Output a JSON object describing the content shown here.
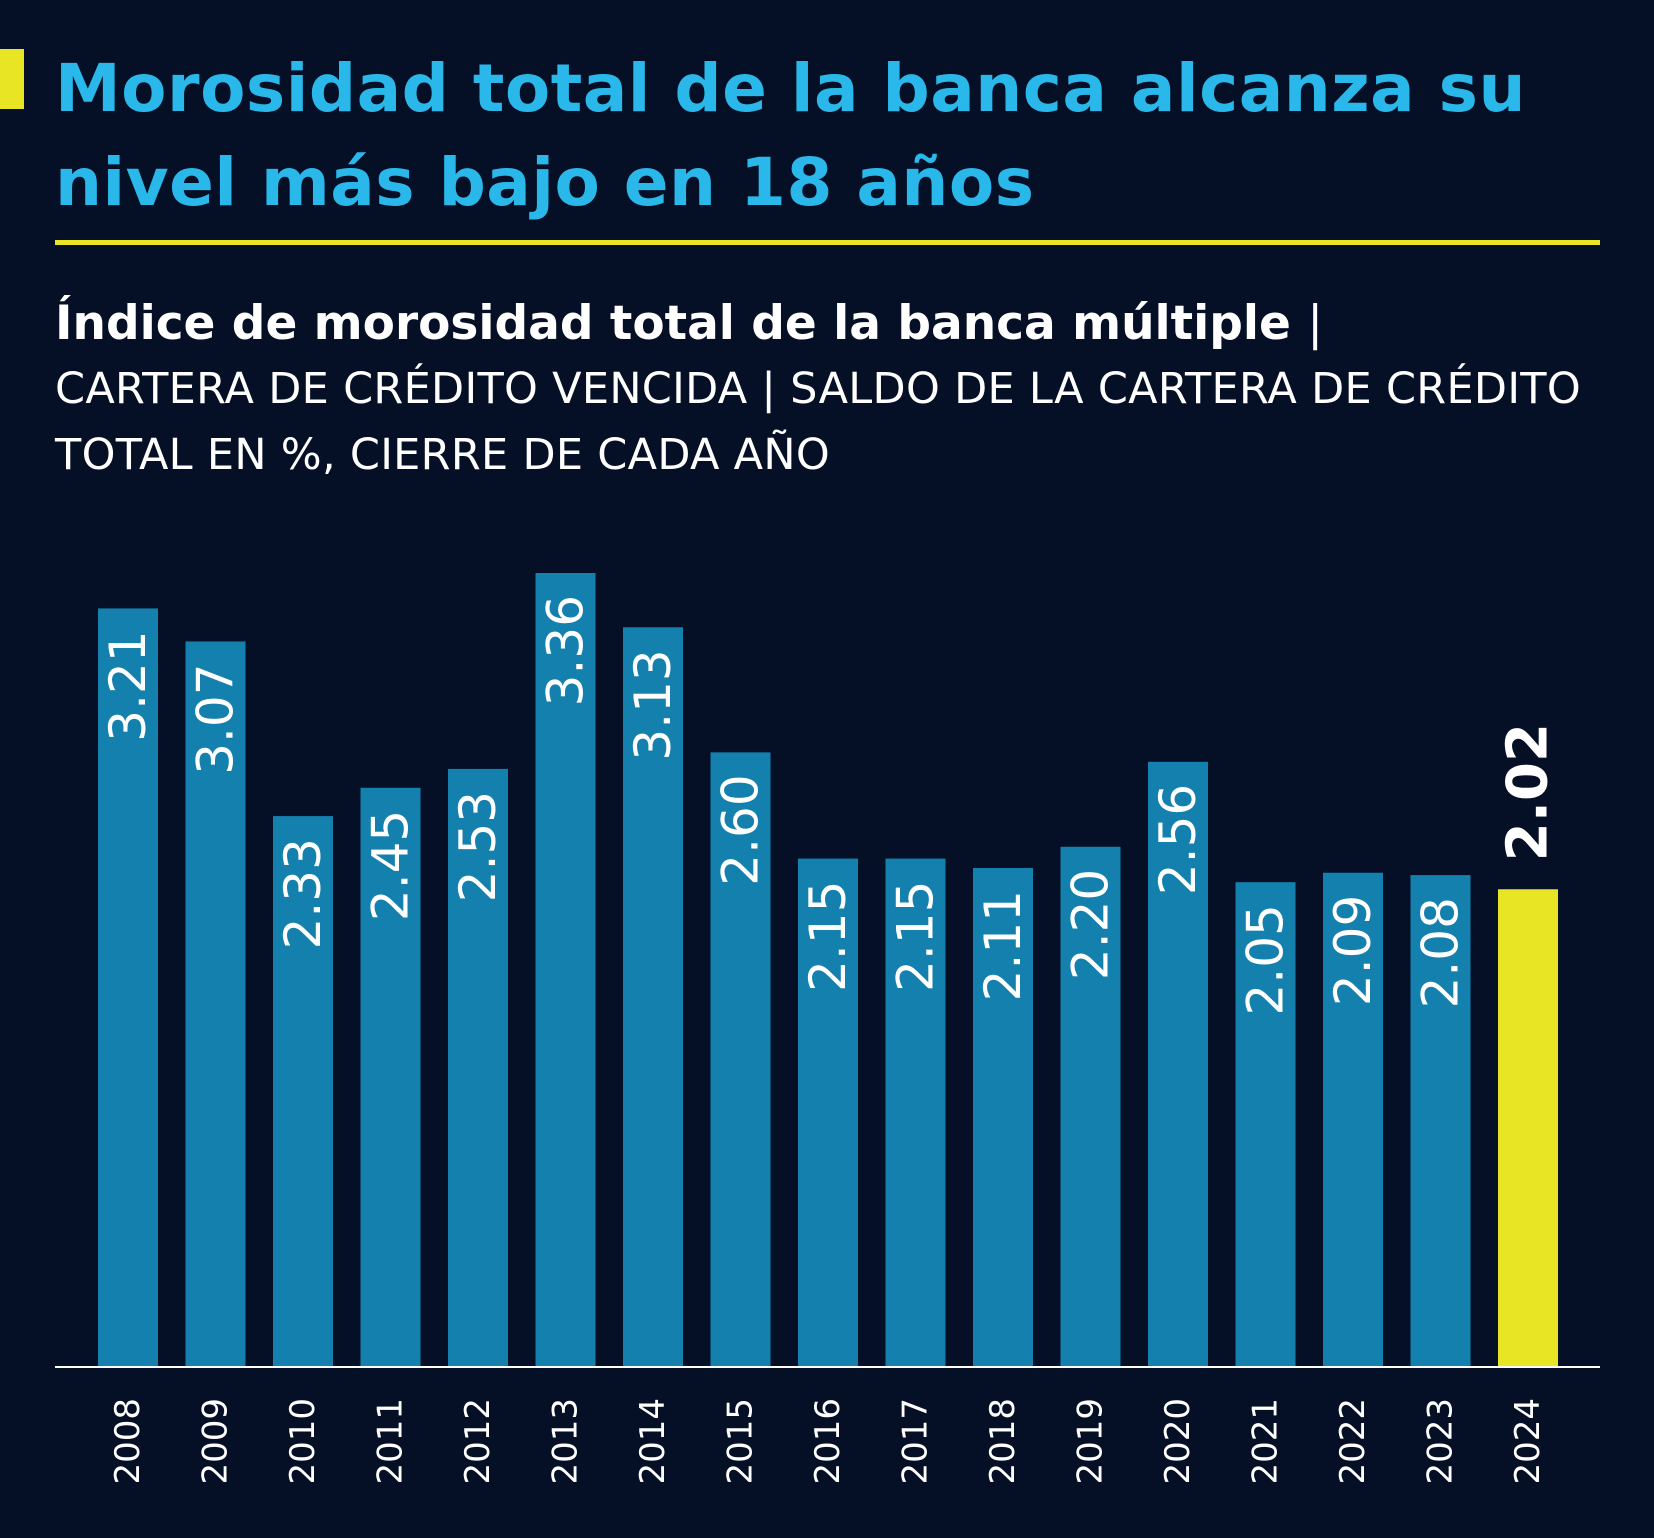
{
  "chart_data": {
    "type": "bar",
    "title": "Morosidad total de la banca alcanza su nivel más bajo en 18 años",
    "subtitle": "Índice de morosidad total de la banca múltiple",
    "subtitle_unit": "CARTERA DE CRÉDITO VENCIDA | SALDO DE LA CARTERA DE CRÉDITO TOTAL EN %, CIERRE DE CADA AÑO",
    "categories": [
      "2008",
      "2009",
      "2010",
      "2011",
      "2012",
      "2013",
      "2014",
      "2015",
      "2016",
      "2017",
      "2018",
      "2019",
      "2020",
      "2021",
      "2022",
      "2023",
      "2024"
    ],
    "values": [
      3.21,
      3.07,
      2.33,
      2.45,
      2.53,
      3.36,
      3.13,
      2.6,
      2.15,
      2.15,
      2.11,
      2.2,
      2.56,
      2.05,
      2.09,
      2.08,
      2.02
    ],
    "value_labels": [
      "3.21",
      "3.07",
      "2.33",
      "2.45",
      "2.53",
      "3.36",
      "3.13",
      "2.60",
      "2.15",
      "2.15",
      "2.11",
      "2.20",
      "2.56",
      "2.05",
      "2.09",
      "2.08",
      "2.02"
    ],
    "highlight_index": 16,
    "xlabel": "",
    "ylabel": "",
    "ylim": [
      0,
      3.36
    ],
    "grid": false,
    "colors": {
      "bar": "#1480ad",
      "highlight": "#e8e624",
      "axis": "#ffffff"
    }
  }
}
